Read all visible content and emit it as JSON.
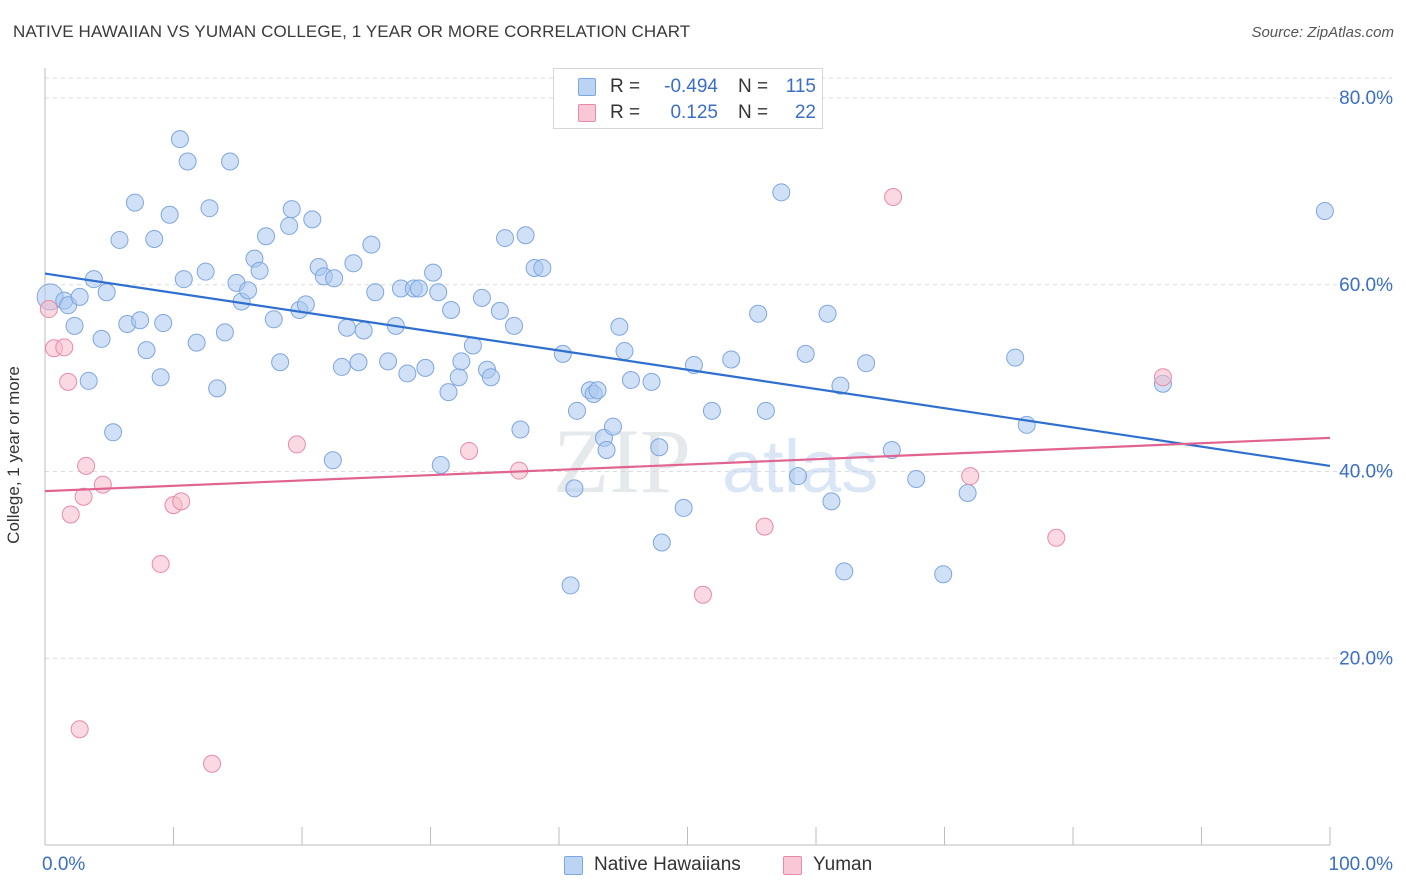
{
  "title": "NATIVE HAWAIIAN VS YUMAN COLLEGE, 1 YEAR OR MORE CORRELATION CHART",
  "source": "Source: ZipAtlas.com",
  "watermark": {
    "zip": "ZIP",
    "atlas": "atlas"
  },
  "colors": {
    "blue_fill": "#a9c8f0",
    "blue_stroke": "#7fa6dd",
    "blue_line": "#2f6fd0",
    "pink_fill": "#f6b9cb",
    "pink_stroke": "#e88aa8",
    "pink_line": "#e0648f",
    "tick_label": "#3b6fc4",
    "grid": "#dcdcdc"
  },
  "legend": {
    "rows": [
      {
        "r_label": "R =",
        "r_value": "-0.494",
        "n_label": "N =",
        "n_value": "115"
      },
      {
        "r_label": "R =",
        "r_value": "0.125",
        "n_label": "N =",
        "n_value": "22"
      }
    ]
  },
  "bottom_legend": {
    "series1": "Native Hawaiians",
    "series2": "Yuman"
  },
  "chart_data": {
    "type": "scatter",
    "xlabel": "",
    "ylabel": "College, 1 year or more",
    "xlim": [
      0,
      100
    ],
    "ylim": [
      0,
      83
    ],
    "x_tick_labels": [
      {
        "v": 0,
        "label": "0.0%"
      },
      {
        "v": 100,
        "label": "100.0%"
      }
    ],
    "y_tick_labels": [
      {
        "v": 20,
        "label": "20.0%"
      },
      {
        "v": 40,
        "label": "40.0%"
      },
      {
        "v": 60,
        "label": "60.0%"
      },
      {
        "v": 80,
        "label": "80.0%"
      }
    ],
    "y_grid": [
      20,
      40,
      60,
      80
    ],
    "x_minor_ticks": [
      10,
      20,
      30,
      40,
      50,
      60,
      70,
      80,
      90,
      100
    ],
    "series": [
      {
        "name": "Native Hawaiians",
        "trend": {
          "x0": 0,
          "y0": 61.2,
          "x1": 100,
          "y1": 40.6
        },
        "points": [
          [
            0.4,
            58.7
          ],
          [
            1.5,
            58.3
          ],
          [
            1.8,
            57.8
          ],
          [
            2.3,
            55.6
          ],
          [
            2.7,
            58.7
          ],
          [
            3.4,
            49.7
          ],
          [
            3.8,
            60.6
          ],
          [
            4.4,
            54.2
          ],
          [
            4.8,
            59.2
          ],
          [
            5.3,
            44.2
          ],
          [
            5.8,
            64.8
          ],
          [
            6.4,
            55.8
          ],
          [
            7,
            68.8
          ],
          [
            7.4,
            56.2
          ],
          [
            7.9,
            53
          ],
          [
            8.5,
            64.9
          ],
          [
            9,
            50.1
          ],
          [
            9.2,
            55.9
          ],
          [
            9.7,
            67.5
          ],
          [
            10.5,
            75.6
          ],
          [
            10.8,
            60.6
          ],
          [
            11.1,
            73.2
          ],
          [
            11.8,
            53.8
          ],
          [
            12.5,
            61.4
          ],
          [
            12.8,
            68.2
          ],
          [
            13.4,
            48.9
          ],
          [
            14,
            54.9
          ],
          [
            14.4,
            73.2
          ],
          [
            14.9,
            60.2
          ],
          [
            15.3,
            58.2
          ],
          [
            15.8,
            59.4
          ],
          [
            16.3,
            62.8
          ],
          [
            16.7,
            61.5
          ],
          [
            17.2,
            65.2
          ],
          [
            17.8,
            56.3
          ],
          [
            18.3,
            51.7
          ],
          [
            19,
            66.3
          ],
          [
            19.2,
            68.1
          ],
          [
            19.8,
            57.3
          ],
          [
            20.3,
            57.9
          ],
          [
            20.8,
            67
          ],
          [
            21.3,
            61.9
          ],
          [
            21.7,
            60.9
          ],
          [
            22.5,
            60.7
          ],
          [
            23.1,
            51.2
          ],
          [
            23.5,
            55.4
          ],
          [
            24,
            62.3
          ],
          [
            24.4,
            51.7
          ],
          [
            24.8,
            55.1
          ],
          [
            25.4,
            64.3
          ],
          [
            25.7,
            59.2
          ],
          [
            26.7,
            51.8
          ],
          [
            27.3,
            55.6
          ],
          [
            27.7,
            59.6
          ],
          [
            28.2,
            50.5
          ],
          [
            28.7,
            59.6
          ],
          [
            29.1,
            59.6
          ],
          [
            29.6,
            51.1
          ],
          [
            30.2,
            61.3
          ],
          [
            30.6,
            59.2
          ],
          [
            31.4,
            48.5
          ],
          [
            31.6,
            57.3
          ],
          [
            32.2,
            50.1
          ],
          [
            32.4,
            51.8
          ],
          [
            33.3,
            53.5
          ],
          [
            34,
            58.6
          ],
          [
            34.4,
            50.9
          ],
          [
            34.7,
            50.1
          ],
          [
            35.4,
            57.2
          ],
          [
            35.8,
            65
          ],
          [
            36.5,
            55.6
          ],
          [
            37,
            44.5
          ],
          [
            37.4,
            65.3
          ],
          [
            38.1,
            61.8
          ],
          [
            38.7,
            61.8
          ],
          [
            40.3,
            52.6
          ],
          [
            41.2,
            38.2
          ],
          [
            41.4,
            46.5
          ],
          [
            42.4,
            48.7
          ],
          [
            42.7,
            48.3
          ],
          [
            43,
            48.7
          ],
          [
            43.5,
            43.6
          ],
          [
            43.7,
            42.3
          ],
          [
            44.2,
            44.8
          ],
          [
            44.7,
            55.5
          ],
          [
            45.1,
            52.9
          ],
          [
            45.6,
            49.8
          ],
          [
            47.2,
            49.6
          ],
          [
            47.8,
            42.6
          ],
          [
            48,
            32.4
          ],
          [
            49.7,
            36.1
          ],
          [
            50.5,
            51.4
          ],
          [
            51.9,
            46.5
          ],
          [
            53.4,
            52
          ],
          [
            55.5,
            56.9
          ],
          [
            56.1,
            46.5
          ],
          [
            57.3,
            69.9
          ],
          [
            58.6,
            39.5
          ],
          [
            59.2,
            52.6
          ],
          [
            60.9,
            56.9
          ],
          [
            61.2,
            36.8
          ],
          [
            61.9,
            49.2
          ],
          [
            62.2,
            29.3
          ],
          [
            63.9,
            51.6
          ],
          [
            65.9,
            42.3
          ],
          [
            67.8,
            39.2
          ],
          [
            69.9,
            29
          ],
          [
            71.8,
            37.7
          ],
          [
            75.5,
            52.2
          ],
          [
            76.4,
            45
          ],
          [
            87,
            49.4
          ],
          [
            99.6,
            67.9
          ],
          [
            40.9,
            27.8
          ],
          [
            22.4,
            41.2
          ],
          [
            30.8,
            40.7
          ]
        ]
      },
      {
        "name": "Yuman",
        "trend": {
          "x0": 0,
          "y0": 37.9,
          "x1": 100,
          "y1": 43.6
        },
        "points": [
          [
            0.3,
            57.4
          ],
          [
            0.7,
            53.2
          ],
          [
            1.5,
            53.3
          ],
          [
            1.8,
            49.6
          ],
          [
            2,
            35.4
          ],
          [
            2.7,
            12.4
          ],
          [
            3,
            37.3
          ],
          [
            3.2,
            40.6
          ],
          [
            4.5,
            38.6
          ],
          [
            9,
            30.1
          ],
          [
            10,
            36.4
          ],
          [
            10.6,
            36.8
          ],
          [
            13,
            8.7
          ],
          [
            19.6,
            42.9
          ],
          [
            33,
            42.2
          ],
          [
            36.9,
            40.1
          ],
          [
            51.2,
            26.8
          ],
          [
            56,
            34.1
          ],
          [
            66,
            69.4
          ],
          [
            72,
            39.5
          ],
          [
            78.7,
            32.9
          ],
          [
            87,
            50.1
          ]
        ]
      }
    ]
  }
}
